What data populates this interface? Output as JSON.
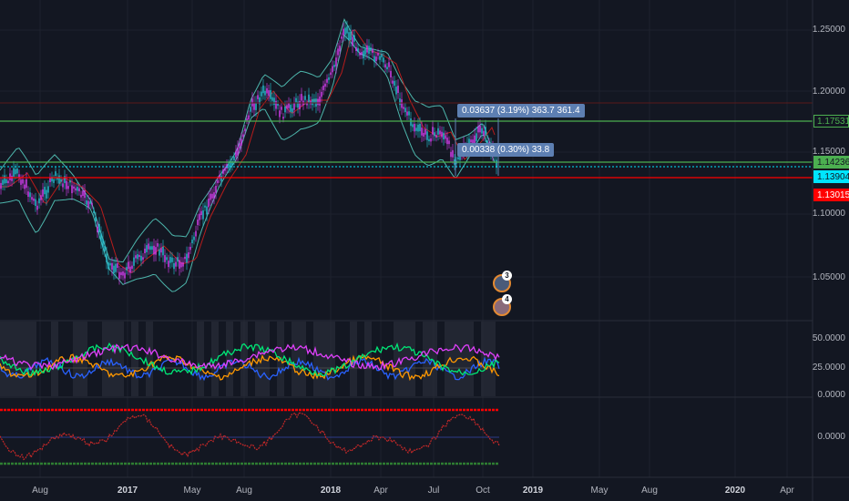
{
  "price_axis": {
    "labels": [
      "1.25000",
      "1.20000",
      "1.15000",
      "1.10000",
      "1.05000"
    ],
    "tags": [
      {
        "text": "1.17531",
        "color": "#4caf50",
        "bg": "#131722",
        "border": "#4caf50"
      },
      {
        "text": "1.14236",
        "color": "#131722",
        "bg": "#4caf50",
        "border": "#4caf50"
      },
      {
        "text": "1.13904",
        "color": "#131722",
        "bg": "#00e5ff",
        "border": "#00e5ff"
      },
      {
        "text": "1.13015",
        "color": "#ffffff",
        "bg": "#ff0000",
        "border": "#ff0000"
      }
    ]
  },
  "indicator1_axis": {
    "labels": [
      "50.0000",
      "25.0000",
      "0.0000"
    ]
  },
  "indicator2_axis": {
    "labels": [
      "0.0000"
    ]
  },
  "measurements": [
    {
      "text": "0.03637 (3.19%) 363.7   361.4"
    },
    {
      "text": "0.00338 (0.30%) 33.8"
    }
  ],
  "events": [
    {
      "count": "3",
      "icon": "flag-eu-icon"
    },
    {
      "count": "4",
      "icon": "flag-us-icon"
    }
  ],
  "time_axis": {
    "labels": [
      {
        "text": "Aug",
        "year": false
      },
      {
        "text": "2017",
        "year": true
      },
      {
        "text": "May",
        "year": false
      },
      {
        "text": "Aug",
        "year": false
      },
      {
        "text": "2018",
        "year": true
      },
      {
        "text": "Apr",
        "year": false
      },
      {
        "text": "Jul",
        "year": false
      },
      {
        "text": "Oct",
        "year": false
      },
      {
        "text": "2019",
        "year": true
      },
      {
        "text": "May",
        "year": false
      },
      {
        "text": "Aug",
        "year": false
      },
      {
        "text": "2020",
        "year": true
      },
      {
        "text": "Apr",
        "year": false
      }
    ]
  },
  "colors": {
    "background": "#131722",
    "candle_up": "#26c6da",
    "candle_down": "#e040fb",
    "bollinger": "#4db6ac",
    "ma": "#b71c1c",
    "level_green": "#4caf50",
    "level_red": "#ff0000",
    "osc_blue": "#2962ff",
    "osc_orange": "#ff9800",
    "osc_green": "#00e676",
    "osc_magenta": "#e040fb",
    "osc2_line": "#c62828"
  }
}
